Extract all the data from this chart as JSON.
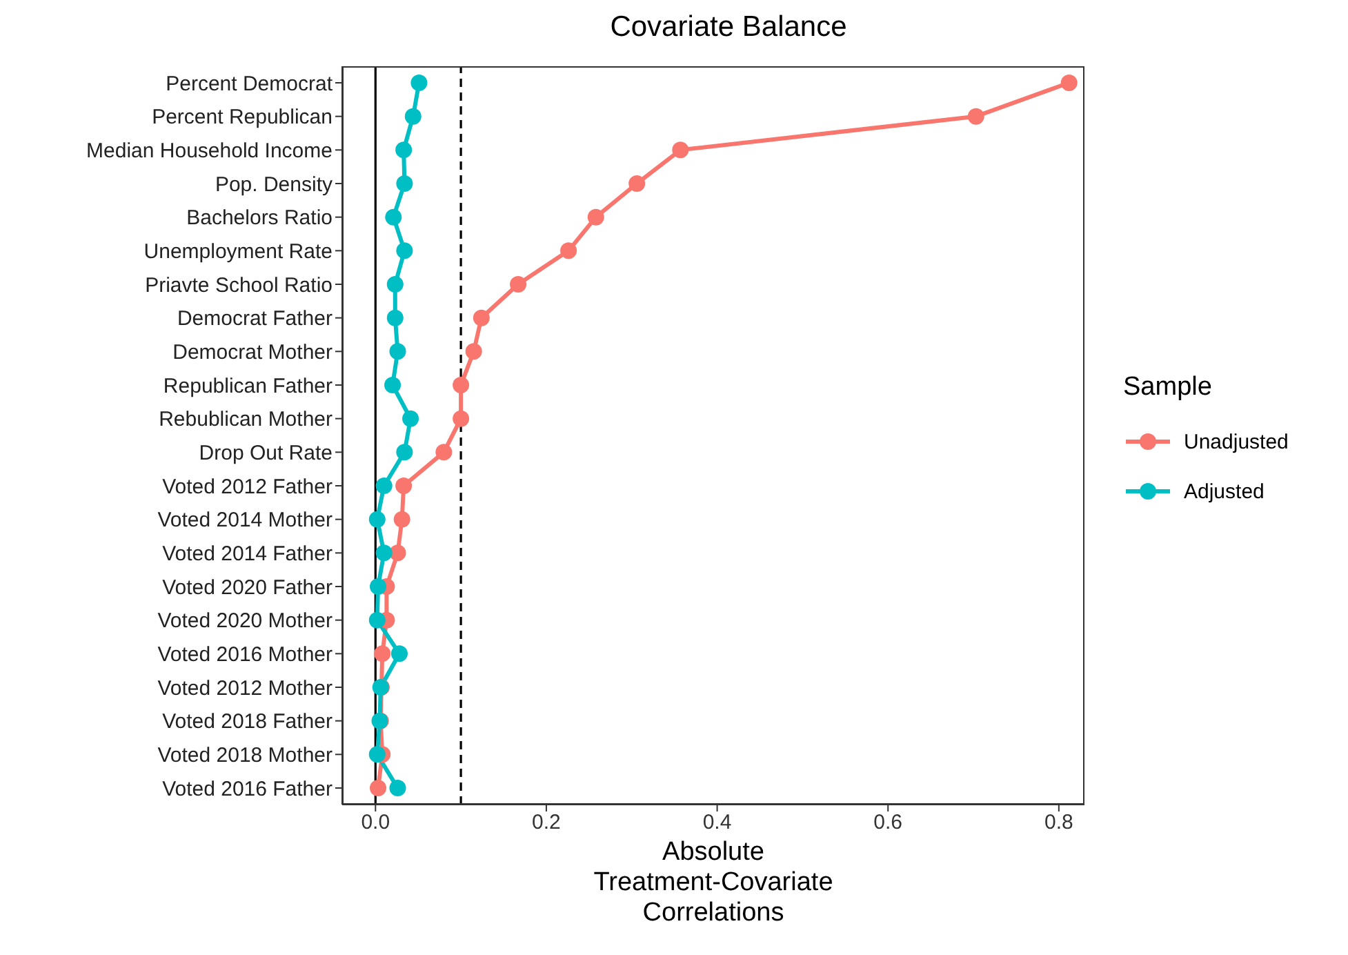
{
  "chart_data": {
    "type": "line",
    "title": "Covariate Balance",
    "xlabel": "Absolute\nTreatment-Covariate\nCorrelations",
    "legend_title": "Sample",
    "orientation": "horizontal",
    "categories": [
      "Percent Democrat",
      "Percent Republican",
      "Median Household Income",
      "Pop. Density",
      "Bachelors Ratio",
      "Unemployment Rate",
      "Priavte School Ratio",
      "Democrat Father",
      "Democrat Mother",
      "Republican Father",
      "Rebublican Mother",
      "Drop Out Rate",
      "Voted 2012 Father",
      "Voted 2014 Mother",
      "Voted 2014 Father",
      "Voted 2020 Father",
      "Voted 2020 Mother",
      "Voted 2016 Mother",
      "Voted 2012 Mother",
      "Voted 2018 Father",
      "Voted 2018 Mother",
      "Voted 2016 Father"
    ],
    "series": [
      {
        "name": "Unadjusted",
        "color": "#f8766d",
        "values": [
          0.812,
          0.703,
          0.357,
          0.306,
          0.258,
          0.226,
          0.167,
          0.124,
          0.115,
          0.1,
          0.1,
          0.08,
          0.033,
          0.031,
          0.026,
          0.013,
          0.013,
          0.008,
          0.007,
          0.006,
          0.008,
          0.003
        ]
      },
      {
        "name": "Adjusted",
        "color": "#00bfc4",
        "values": [
          0.051,
          0.044,
          0.033,
          0.034,
          0.021,
          0.034,
          0.023,
          0.023,
          0.026,
          0.02,
          0.041,
          0.034,
          0.01,
          0.002,
          0.01,
          0.003,
          0.002,
          0.028,
          0.006,
          0.005,
          0.002,
          0.026
        ]
      }
    ],
    "xlim": [
      -0.039,
      0.83
    ],
    "xticks": [
      {
        "value": 0,
        "label": "0.0"
      },
      0.2,
      0.4,
      0.6,
      0.8
    ],
    "ref_lines": [
      {
        "axis": "x",
        "value": 0,
        "line_style": "solid",
        "color": "#000000"
      },
      {
        "axis": "x",
        "value": 0.1,
        "line_style": "dashed",
        "color": "#000000"
      }
    ],
    "marker": "circle",
    "line_style": "solid",
    "grid": false,
    "legend": "right"
  }
}
